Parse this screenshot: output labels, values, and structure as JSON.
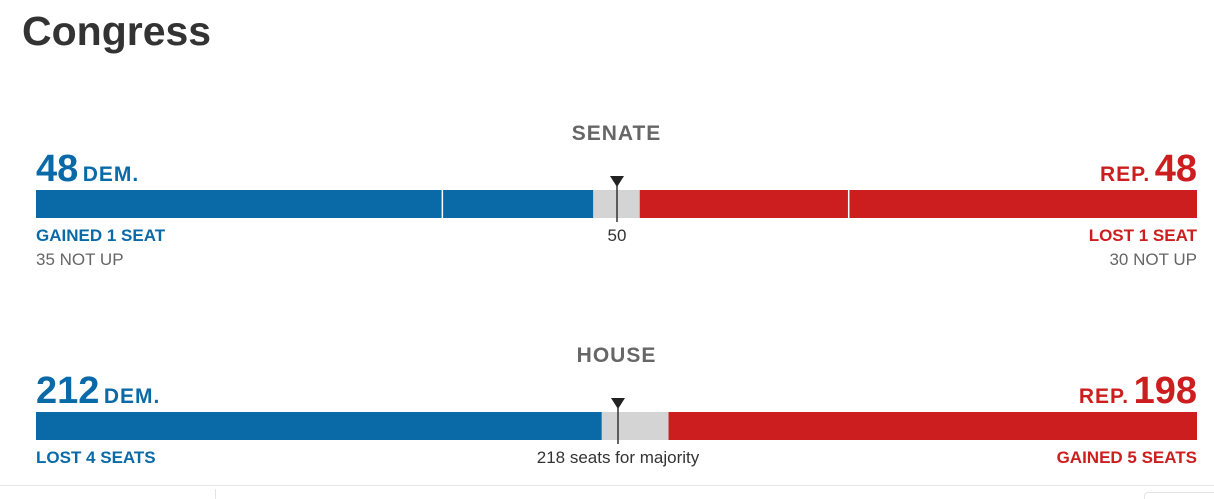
{
  "page_title": "Congress",
  "colors": {
    "dem": "#0a6aa8",
    "rep": "#cc1e1e",
    "undecided": "#d4d4d4",
    "text_gray": "#666666"
  },
  "senate": {
    "name": "SENATE",
    "dem_count": "48",
    "dem_label": "DEM.",
    "rep_count": "48",
    "rep_label": "REP.",
    "dem_status": "GAINED 1 SEAT",
    "rep_status": "LOST 1 SEAT",
    "dem_not_up": "35 NOT UP",
    "rep_not_up": "30 NOT UP",
    "majority_label": "50"
  },
  "house": {
    "name": "HOUSE",
    "dem_count": "212",
    "dem_label": "DEM.",
    "rep_count": "198",
    "rep_label": "REP.",
    "dem_status": "LOST 4 SEATS",
    "rep_status": "GAINED 5 SEATS",
    "majority_label": "218 seats for majority"
  },
  "chart_data": [
    {
      "type": "bar",
      "chamber": "SENATE",
      "total_seats": 100,
      "majority": 50,
      "dem_seats": 48,
      "dem_not_up": 35,
      "undecided": 4,
      "rep_seats": 48,
      "rep_not_up": 30
    },
    {
      "type": "bar",
      "chamber": "HOUSE",
      "total_seats": 435,
      "majority": 218,
      "dem_seats": 212,
      "undecided": 25,
      "rep_seats": 198
    }
  ]
}
